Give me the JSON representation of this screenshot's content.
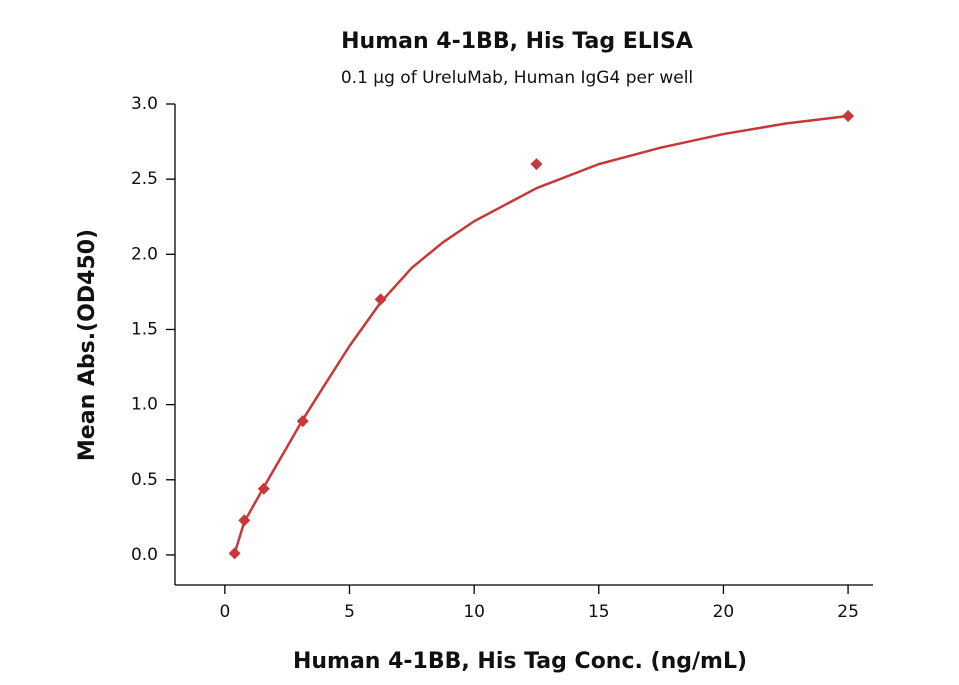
{
  "chart_data": {
    "type": "scatter",
    "title": "Human 4-1BB, His Tag ELISA",
    "subtitle": "0.1 µg of UreluMab, Human IgG4 per well",
    "x_label": "Human 4-1BB, His Tag Conc. (ng/mL)",
    "y_label": "Mean Abs.(OD450)",
    "series": [
      {
        "style": "markers",
        "color": "#c8383a",
        "x": [
          0.39,
          0.78,
          1.56,
          3.125,
          6.25,
          12.5,
          25
        ],
        "values": [
          0.01,
          0.23,
          0.44,
          0.89,
          1.7,
          2.6,
          2.92
        ]
      },
      {
        "style": "line",
        "color": "#c8383a",
        "x": [
          0.39,
          0.78,
          1.56,
          2.5,
          3.125,
          4,
          5,
          6.25,
          7.5,
          8.75,
          10,
          12.5,
          15,
          17.5,
          20,
          22.5,
          25
        ],
        "values": [
          0.01,
          0.22,
          0.45,
          0.72,
          0.9,
          1.13,
          1.39,
          1.68,
          1.91,
          2.08,
          2.22,
          2.44,
          2.6,
          2.71,
          2.8,
          2.87,
          2.92
        ]
      }
    ],
    "xlim": [
      -2,
      26
    ],
    "xticks": [
      0,
      5,
      10,
      15,
      20,
      25
    ],
    "ylim": [
      -0.2,
      3.0
    ],
    "yticks": [
      {
        "value": 0,
        "label": "0.0"
      },
      {
        "value": 0.5,
        "label": "0.5"
      },
      {
        "value": 1,
        "label": "1.0"
      },
      {
        "value": 1.5,
        "label": "1.5"
      },
      {
        "value": 2,
        "label": "2.0"
      },
      {
        "value": 2.5,
        "label": "2.5"
      },
      {
        "value": 3,
        "label": "3.0"
      }
    ],
    "grid": false
  }
}
